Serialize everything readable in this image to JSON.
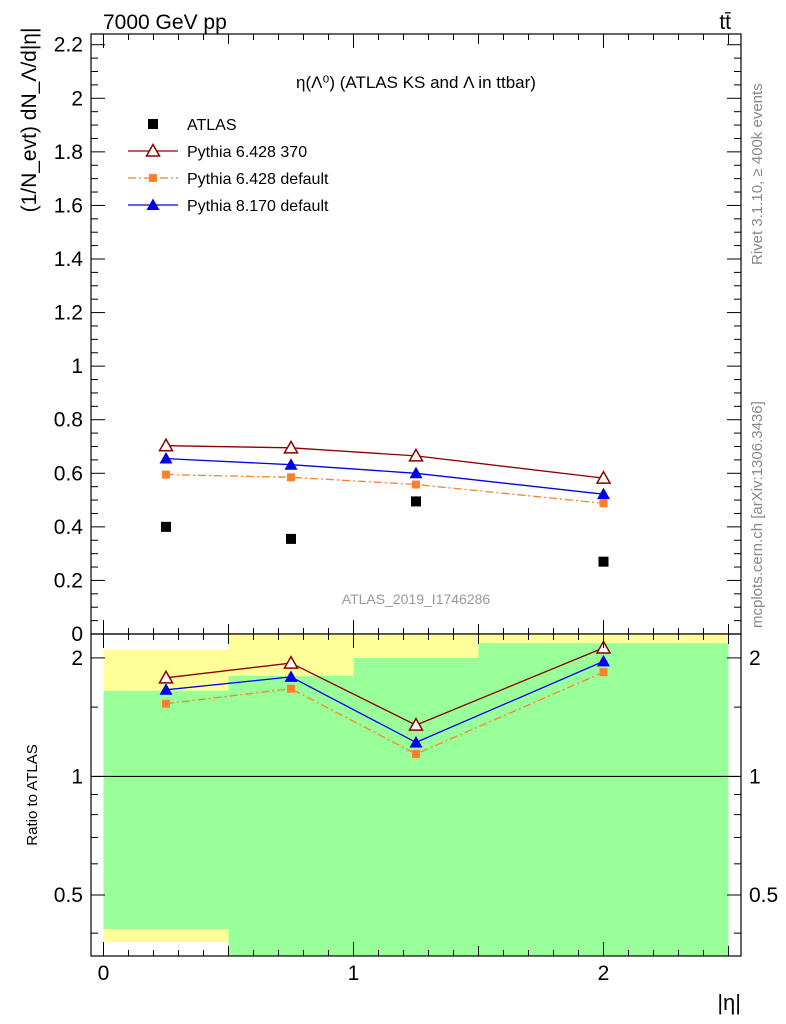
{
  "header": {
    "left": "7000 GeV pp",
    "right": "tt̄"
  },
  "side_texts": {
    "rivet": "Rivet 3.1.10, ≥ 400k events",
    "source": "mcplots.cern.ch [arXiv:1306.3436]"
  },
  "analysis_label": "ATLAS_2019_I1746286",
  "chart_data": [
    {
      "type": "scatter",
      "title": "η(Λ⁰) (ATLAS KS and Λ in ttbar)",
      "ylabel": "(1/N_evt) dN_Λ/d|η|",
      "xlim": [
        -0.05,
        2.55
      ],
      "ylim": [
        0,
        2.24
      ],
      "yticks": [
        0,
        0.2,
        0.4,
        0.6,
        0.8,
        1,
        1.2,
        1.4,
        1.6,
        1.8,
        2,
        2.2
      ],
      "ytick_labels": [
        "0",
        "0.2",
        "0.4",
        "0.6",
        "0.8",
        "1",
        "1.2",
        "1.4",
        "1.6",
        "1.8",
        "2",
        "2.2"
      ],
      "x": [
        0.25,
        0.75,
        1.25,
        2.0
      ],
      "legend_position": "top-left",
      "series": [
        {
          "name": "ATLAS",
          "marker": "square",
          "color": "#000000",
          "values": [
            0.4,
            0.355,
            0.495,
            0.27
          ]
        },
        {
          "name": "Pythia 6.428 370",
          "marker": "open-triangle",
          "line": "solid",
          "color": "#8b0000",
          "values": [
            0.703,
            0.695,
            0.665,
            0.582
          ]
        },
        {
          "name": "Pythia 6.428 default",
          "marker": "square",
          "line": "dashdot",
          "color": "#ff7f2a",
          "values": [
            0.595,
            0.585,
            0.558,
            0.488
          ]
        },
        {
          "name": "Pythia 8.170 default",
          "marker": "triangle",
          "line": "solid",
          "color": "#0000ee",
          "values": [
            0.655,
            0.632,
            0.6,
            0.522
          ]
        }
      ]
    },
    {
      "type": "scatter",
      "ylabel": "Ratio to ATLAS",
      "xlabel": "|η|",
      "xlim": [
        -0.05,
        2.55
      ],
      "ylim": [
        0.35,
        2.3
      ],
      "log_y": true,
      "yticks": [
        0.5,
        1,
        2
      ],
      "ytick_labels": [
        "0.5",
        "1",
        "2"
      ],
      "xticks": [
        0,
        1,
        2
      ],
      "xtick_labels": [
        "0",
        "1",
        "2"
      ],
      "x": [
        0.25,
        0.75,
        1.25,
        2.0
      ],
      "reference_line": 1,
      "bands": [
        {
          "name": "yellow",
          "color": "#ffff99",
          "bins": [
            [
              0,
              0.5,
              0.38,
              2.1
            ],
            [
              0.5,
              1.0,
              0.35,
              2.3
            ],
            [
              1.0,
              1.5,
              0.35,
              2.3
            ],
            [
              1.5,
              2.5,
              0.35,
              2.3
            ]
          ]
        },
        {
          "name": "green",
          "color": "#99ff99",
          "bins": [
            [
              0,
              0.5,
              0.41,
              1.65
            ],
            [
              0.5,
              1.0,
              0.35,
              1.8
            ],
            [
              1.0,
              1.5,
              0.35,
              2.0
            ],
            [
              1.5,
              2.5,
              0.35,
              2.18
            ]
          ]
        }
      ],
      "series": [
        {
          "name": "Pythia 6.428 370",
          "marker": "open-triangle",
          "line": "solid",
          "color": "#8b0000",
          "values": [
            1.78,
            1.94,
            1.35,
            2.12
          ]
        },
        {
          "name": "Pythia 6.428 default",
          "marker": "square",
          "line": "dashdot",
          "color": "#ff7f2a",
          "values": [
            1.53,
            1.67,
            1.14,
            1.84
          ]
        },
        {
          "name": "Pythia 8.170 default",
          "marker": "triangle",
          "line": "solid",
          "color": "#0000ee",
          "values": [
            1.66,
            1.79,
            1.22,
            1.96
          ]
        }
      ]
    }
  ]
}
